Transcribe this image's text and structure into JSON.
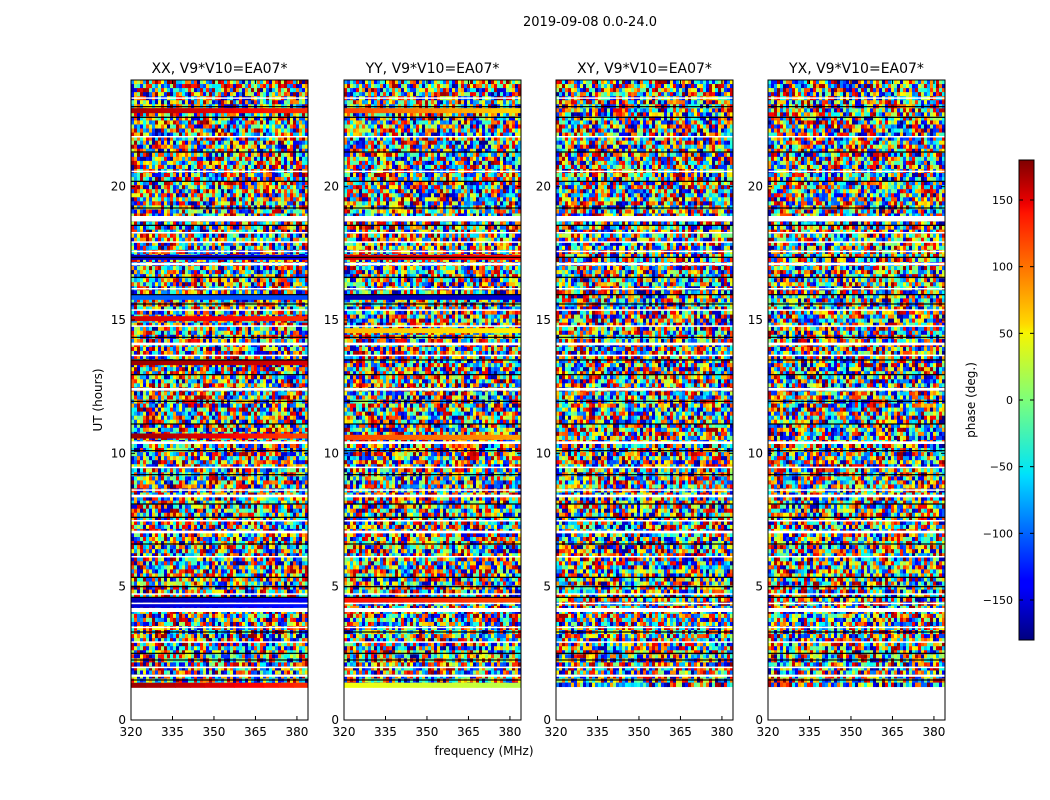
{
  "figure": {
    "suptitle": "2019-09-08 0.0-24.0",
    "xlabel": "frequency (MHz)",
    "ylabel": "UT (hours)",
    "colorbar_label": "phase (deg.)"
  },
  "chart_data": {
    "type": "heatmap",
    "colormap": "jet",
    "xlim": [
      320,
      384
    ],
    "ylim": [
      0,
      24
    ],
    "x_ticks": [
      320,
      335,
      350,
      365,
      380
    ],
    "y_ticks": [
      0,
      5,
      10,
      15,
      20
    ],
    "color_range": [
      -180,
      180
    ],
    "colorbar_ticks": [
      -150,
      -100,
      -50,
      0,
      50,
      100,
      150
    ],
    "data_start_ut": 1.25,
    "panels": [
      {
        "title": "XX, V9*V10=EA07*",
        "coherent_bands": [
          {
            "ut": 1.3,
            "phase_start": 170,
            "phase_end": 120
          },
          {
            "ut": 4.3,
            "phase_start": -150,
            "phase_end": -130
          },
          {
            "ut": 4.5,
            "phase_start": -160,
            "phase_end": -140
          },
          {
            "ut": 10.65,
            "phase_start": 170,
            "phase_end": 110
          },
          {
            "ut": 13.4,
            "phase_start": 170,
            "phase_end": 150
          },
          {
            "ut": 15.05,
            "phase_start": 150,
            "phase_end": 120
          },
          {
            "ut": 15.85,
            "phase_start": -100,
            "phase_end": -110
          },
          {
            "ut": 17.35,
            "phase_start": -155,
            "phase_end": -140
          },
          {
            "ut": 22.85,
            "phase_start": 165,
            "phase_end": 120
          }
        ]
      },
      {
        "title": "YY, V9*V10=EA07*",
        "coherent_bands": [
          {
            "ut": 1.3,
            "phase_start": 40,
            "phase_end": 20
          },
          {
            "ut": 4.5,
            "phase_start": 130,
            "phase_end": 110
          },
          {
            "ut": 10.6,
            "phase_start": 110,
            "phase_end": 80
          },
          {
            "ut": 14.6,
            "phase_start": 70,
            "phase_end": 50
          },
          {
            "ut": 15.85,
            "phase_start": -160,
            "phase_end": -150
          },
          {
            "ut": 17.35,
            "phase_start": 150,
            "phase_end": 130
          },
          {
            "ut": 22.85,
            "phase_start": 110,
            "phase_end": 60
          }
        ]
      },
      {
        "title": "XY, V9*V10=EA07*",
        "coherent_bands": []
      },
      {
        "title": "YX, V9*V10=EA07*",
        "coherent_bands": []
      }
    ]
  }
}
